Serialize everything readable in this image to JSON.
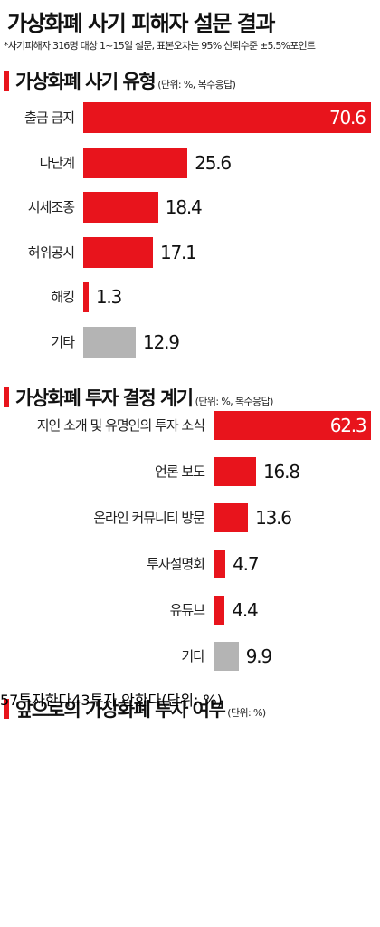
{
  "title": "가상화폐 사기 피해자 설문 결과",
  "note": "*사기피해자 316명 대상 1~15일 설문, 표본오차는 95% 신뢰수준 ±5.5%포인트",
  "chart_data": [
    {
      "type": "bar",
      "orientation": "horizontal",
      "title": "가상화폐 사기 유형",
      "unit": "(단위: %, 복수응답)",
      "categories": [
        "출금 금지",
        "다단계",
        "시세조종",
        "허위공시",
        "해킹",
        "기타"
      ],
      "values": [
        70.6,
        25.6,
        18.4,
        17.1,
        1.3,
        12.9
      ],
      "colors": [
        "#e8141c",
        "#e8141c",
        "#e8141c",
        "#e8141c",
        "#e8141c",
        "#b4b4b4"
      ]
    },
    {
      "type": "bar",
      "orientation": "horizontal",
      "title": "가상화폐 투자 결정 계기",
      "unit": "(단위: %, 복수응답)",
      "categories": [
        "지인 소개 및 유명인의 투자 소식",
        "언론 보도",
        "온라인 커뮤니티 방문",
        "투자설명회",
        "유튜브",
        "기타"
      ],
      "values": [
        62.3,
        16.8,
        13.6,
        4.7,
        4.4,
        9.9
      ],
      "colors": [
        "#e8141c",
        "#e8141c",
        "#e8141c",
        "#e8141c",
        "#e8141c",
        "#b4b4b4"
      ]
    },
    {
      "type": "pie",
      "shape": "half-donut",
      "title": "앞으로의 가상화폐 투자 여부",
      "unit": "(단위: %)",
      "categories": [
        "투자한다",
        "투자 안한다"
      ],
      "values": [
        57,
        43
      ],
      "colors": [
        "#e8141c",
        "#666666"
      ]
    }
  ]
}
